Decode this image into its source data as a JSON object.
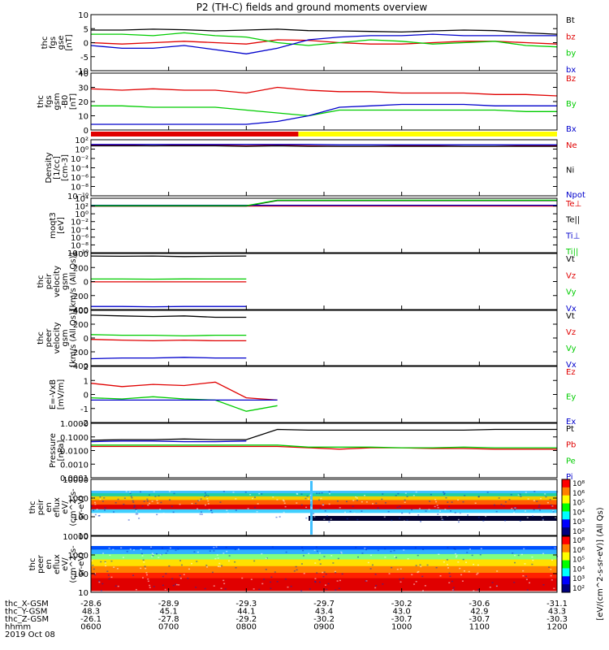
{
  "title": "P2 (TH-C) fields and ground moments overview",
  "colors": {
    "black": "#000000",
    "red": "#e00000",
    "green": "#00cc00",
    "blue": "#0000cc",
    "yellow": "#ffff00"
  },
  "chart_data": [
    {
      "type": "line",
      "id": "fgs",
      "ylabel": [
        "thc",
        "fgs",
        "gse",
        "[nT]"
      ],
      "ylim": [
        -10,
        10
      ],
      "yticks": [
        "10",
        "5",
        "0",
        "-5",
        "-10"
      ],
      "series": [
        {
          "name": "Bt",
          "color": "black",
          "values": [
            4.5,
            4.5,
            4.8,
            4.6,
            4.2,
            4.5,
            4.8,
            4.3,
            4.2,
            4,
            3.8,
            4.2,
            4.5,
            4.3,
            3.5,
            3
          ]
        },
        {
          "name": "bz",
          "color": "red",
          "values": [
            0,
            -0.5,
            0,
            0.5,
            0,
            -0.5,
            1,
            0.8,
            0,
            -0.5,
            -0.5,
            0,
            0.5,
            0.5,
            0,
            -0.5
          ]
        },
        {
          "name": "by",
          "color": "green",
          "values": [
            3,
            3,
            2.5,
            3.5,
            2.5,
            2,
            0,
            -1,
            0,
            1,
            0.5,
            -0.5,
            0,
            0.5,
            -1,
            -1.5
          ]
        },
        {
          "name": "bx",
          "color": "blue",
          "values": [
            -1,
            -2,
            -2,
            -1,
            -2.5,
            -4,
            -2,
            1,
            2,
            2.5,
            2.5,
            3,
            2.5,
            2.5,
            2.5,
            2.5
          ]
        }
      ]
    },
    {
      "type": "line",
      "id": "fgs_gsm",
      "ylabel": [
        "thc",
        "fgs",
        "gsm",
        "-B0",
        "[nT]"
      ],
      "ylim": [
        0,
        40
      ],
      "yticks": [
        "40",
        "30",
        "20",
        "10",
        "0"
      ],
      "series": [
        {
          "name": "Bz",
          "color": "red",
          "values": [
            29,
            28,
            29,
            28,
            28,
            26,
            30,
            28,
            27,
            27,
            26,
            26,
            26,
            25,
            25,
            24
          ]
        },
        {
          "name": "By",
          "color": "green",
          "values": [
            17,
            17,
            16,
            16,
            16,
            14,
            12,
            10,
            14,
            14,
            14,
            14,
            14,
            14,
            13,
            13
          ]
        },
        {
          "name": "Bx",
          "color": "blue",
          "values": [
            4,
            4,
            4,
            4,
            4,
            4,
            6,
            10,
            16,
            17,
            18,
            18,
            18,
            17,
            17,
            17
          ]
        }
      ]
    },
    {
      "type": "line",
      "id": "density",
      "ylabel": [
        "Density",
        "[1/cc]",
        "[cm-3]"
      ],
      "ylim": [
        -10,
        2
      ],
      "log": true,
      "yticks": [
        "10²",
        "10⁰",
        "10⁻²",
        "10⁻⁴",
        "10⁻⁶",
        "10⁻⁸",
        "10⁻¹⁰"
      ],
      "series": [
        {
          "name": "Ne",
          "color": "red",
          "values": [
            0.8,
            0.8,
            0.7,
            0.8,
            0.8,
            0.7,
            0.8,
            0.7,
            0.6,
            0.6,
            0.7,
            0.7,
            0.6,
            0.6,
            0.7,
            0.7
          ]
        },
        {
          "name": "Ni",
          "color": "black",
          "values": [
            0.7,
            0.7,
            0.7,
            0.7,
            0.7,
            0.6,
            0.7,
            0.6,
            0.6,
            0.6,
            0.6,
            0.6,
            0.6,
            0.6,
            0.6,
            0.6
          ]
        },
        {
          "name": "Npot",
          "color": "blue",
          "values": [
            1,
            1,
            1,
            1,
            1,
            1,
            1,
            1,
            0.9,
            0.9,
            0.9,
            0.9,
            0.9,
            0.9,
            0.9,
            0.9
          ]
        }
      ]
    },
    {
      "type": "line",
      "id": "temp",
      "ylabel": [
        "moqt3",
        "[eV]"
      ],
      "ylim": [
        -10,
        4
      ],
      "log": true,
      "yticks": [
        "10⁴",
        "10²",
        "10⁰",
        "10⁻²",
        "10⁻⁴",
        "10⁻⁶",
        "10⁻⁸",
        "10⁻¹⁰"
      ],
      "series": [
        {
          "name": "Te⊥",
          "color": "red",
          "values": [
            2,
            2,
            2,
            2,
            2,
            2,
            2,
            2,
            2,
            2,
            2,
            2,
            2,
            2,
            2,
            2
          ]
        },
        {
          "name": "Te||",
          "color": "black",
          "values": [
            2,
            2,
            2,
            2,
            2,
            2,
            3.4,
            3.4,
            3.4,
            3.4,
            3.4,
            3.4,
            3.4,
            3.4,
            3.4,
            3.4
          ]
        },
        {
          "name": "Ti⊥",
          "color": "blue",
          "values": [
            2.2,
            2.2,
            2.2,
            2.2,
            2.2,
            2.2,
            2.2,
            2.2,
            2.2,
            2.2,
            2.2,
            2.2,
            2.2,
            2.2,
            2.2,
            2.2
          ]
        },
        {
          "name": "Ti||",
          "color": "green",
          "values": [
            2.1,
            2.1,
            2.1,
            2.1,
            2.1,
            2.1,
            3.5,
            3.5,
            3.5,
            3.5,
            3.5,
            3.5,
            3.5,
            3.5,
            3.5,
            3.5
          ]
        }
      ]
    },
    {
      "type": "line",
      "id": "peir_vel",
      "ylabel": [
        "thc",
        "peir",
        "velocity",
        "gsm",
        "[km/s (All Qs)]"
      ],
      "ylim": [
        -450,
        450
      ],
      "yticks": [
        "400",
        "200",
        "0",
        "-200",
        "-400"
      ],
      "series": [
        {
          "name": "Vt",
          "color": "black",
          "values": [
            410,
            405,
            410,
            400,
            405,
            410,
            null,
            null,
            null,
            null,
            null,
            null,
            null,
            null,
            null,
            null
          ]
        },
        {
          "name": "Vz",
          "color": "red",
          "values": [
            -5,
            -5,
            -5,
            -5,
            -5,
            -5,
            null,
            null,
            null,
            null,
            null,
            null,
            null,
            null,
            null,
            null
          ]
        },
        {
          "name": "Vy",
          "color": "green",
          "values": [
            40,
            40,
            38,
            42,
            40,
            40,
            null,
            null,
            null,
            null,
            null,
            null,
            null,
            null,
            null,
            null
          ]
        },
        {
          "name": "Vx",
          "color": "blue",
          "values": [
            -400,
            -400,
            -405,
            -400,
            -400,
            -400,
            null,
            null,
            null,
            null,
            null,
            null,
            null,
            null,
            null,
            null
          ]
        }
      ]
    },
    {
      "type": "line",
      "id": "peer_vel",
      "ylabel": [
        "thc",
        "peer",
        "velocity",
        "gsm",
        "[km/s (All Qs)]"
      ],
      "ylim": [
        -400,
        400
      ],
      "yticks": [
        "400",
        "200",
        "0",
        "-200",
        "-400"
      ],
      "series": [
        {
          "name": "Vt",
          "color": "black",
          "values": [
            330,
            320,
            310,
            320,
            300,
            300,
            null,
            null,
            null,
            null,
            null,
            null,
            null,
            null,
            null,
            null
          ]
        },
        {
          "name": "Vz",
          "color": "red",
          "values": [
            -20,
            -30,
            -40,
            -30,
            -40,
            -40,
            null,
            null,
            null,
            null,
            null,
            null,
            null,
            null,
            null,
            null
          ]
        },
        {
          "name": "Vy",
          "color": "green",
          "values": [
            50,
            40,
            40,
            30,
            40,
            40,
            null,
            null,
            null,
            null,
            null,
            null,
            null,
            null,
            null,
            null
          ]
        },
        {
          "name": "Vx",
          "color": "blue",
          "values": [
            -300,
            -290,
            -290,
            -280,
            -290,
            -290,
            null,
            null,
            null,
            null,
            null,
            null,
            null,
            null,
            null,
            null
          ]
        }
      ]
    },
    {
      "type": "line",
      "id": "efield",
      "ylabel": [
        "E=-VxB",
        "[mV/m]"
      ],
      "ylim": [
        -2,
        3
      ],
      "yticks": [
        "2",
        "1",
        "0",
        "-1",
        "-2"
      ],
      "series": [
        {
          "name": "Ez",
          "color": "red",
          "values": [
            1.5,
            1.2,
            1.4,
            1.3,
            1.6,
            0.2,
            0,
            null,
            null,
            null,
            null,
            null,
            null,
            null,
            null,
            null
          ]
        },
        {
          "name": "Ey",
          "color": "green",
          "values": [
            0.2,
            0.1,
            0.3,
            0.1,
            0,
            -1,
            -0.5,
            null,
            null,
            null,
            null,
            null,
            null,
            null,
            null,
            null
          ]
        },
        {
          "name": "Ex",
          "color": "blue",
          "values": [
            0,
            0,
            0,
            0,
            0,
            0,
            0,
            null,
            null,
            null,
            null,
            null,
            null,
            null,
            null,
            null
          ]
        }
      ]
    },
    {
      "type": "line",
      "id": "pressure",
      "ylabel": [
        "Pressure",
        "[nPa]"
      ],
      "ylim": [
        -4,
        0
      ],
      "log": true,
      "yticks": [
        "1.0000",
        "0.1000",
        "0.0100",
        "0.0010",
        "0.0001"
      ],
      "series": [
        {
          "name": "Pt",
          "color": "black",
          "values": [
            -1.25,
            -1.2,
            -1.2,
            -1.15,
            -1.2,
            -1.2,
            -0.45,
            -0.5,
            -0.5,
            -0.5,
            -0.5,
            -0.5,
            -0.5,
            -0.45,
            -0.45,
            -0.45
          ]
        },
        {
          "name": "Pb",
          "color": "red",
          "values": [
            -1.7,
            -1.7,
            -1.7,
            -1.7,
            -1.7,
            -1.7,
            -1.7,
            -1.8,
            -1.9,
            -1.8,
            -1.8,
            -1.85,
            -1.85,
            -1.9,
            -1.9,
            -1.9
          ]
        },
        {
          "name": "Pe",
          "color": "green",
          "values": [
            -1.6,
            -1.6,
            -1.6,
            -1.6,
            -1.6,
            -1.6,
            -1.6,
            -1.75,
            -1.75,
            -1.75,
            -1.8,
            -1.8,
            -1.75,
            -1.8,
            -1.8,
            -1.8
          ]
        },
        {
          "name": "Pi",
          "color": "blue",
          "values": [
            -1.35,
            -1.3,
            -1.3,
            -1.35,
            -1.35,
            -1.3,
            null,
            null,
            null,
            null,
            null,
            null,
            null,
            null,
            null,
            null
          ]
        }
      ]
    },
    {
      "type": "heatmap",
      "id": "peir_en",
      "ylabel": [
        "thc",
        "peir",
        "en",
        "eflux",
        "eV/",
        "(cm^2-s-",
        "sr-eV)"
      ],
      "ylim": [
        5,
        10000
      ],
      "yticks": [
        "10000",
        "1000",
        "100",
        "10"
      ],
      "colorbar": {
        "label": "[eV/(cm^2-s-sr-eV)] (All Qs)",
        "ticks": [
          "10⁸",
          "10⁶",
          "10⁵",
          "10⁴",
          "10³",
          "10²"
        ]
      }
    },
    {
      "type": "heatmap",
      "id": "peer_en",
      "ylabel": [
        "thc",
        "peer",
        "en",
        "eflux",
        "eV/",
        "(cm^2-s-",
        "sr-eV)"
      ],
      "ylim": [
        5,
        10000
      ],
      "yticks": [
        "10000",
        "1000",
        "100",
        "10"
      ],
      "colorbar": {
        "label": "[eV/(cm^2-s-sr-eV)] (All Qs)",
        "ticks": [
          "10⁸",
          "10⁶",
          "10⁵",
          "10⁴",
          "10³",
          "10²"
        ]
      }
    }
  ],
  "mode_bar": {
    "segments": [
      {
        "color": "red",
        "from": 0,
        "to": 0.445
      },
      {
        "color": "yellow",
        "from": 0.445,
        "to": 1
      }
    ]
  },
  "axis_footer": {
    "rows": [
      {
        "label": "thc_X-GSM",
        "values": [
          "-28.6",
          "-28.9",
          "-29.3",
          "-29.7",
          "-30.2",
          "-30.6",
          "-31.1"
        ]
      },
      {
        "label": "thc_Y-GSM",
        "values": [
          "48.3",
          "45.1",
          "44.1",
          "43.4",
          "43.0",
          "42.9",
          "43.3"
        ]
      },
      {
        "label": "thc_Z-GSM",
        "values": [
          "-26.1",
          "-27.8",
          "-29.2",
          "-30.2",
          "-30.7",
          "-30.7",
          "-30.3"
        ]
      },
      {
        "label": "hhmm",
        "values": [
          "0600",
          "0700",
          "0800",
          "0900",
          "1000",
          "1100",
          "1200"
        ]
      }
    ],
    "date": "2019 Oct 08"
  }
}
